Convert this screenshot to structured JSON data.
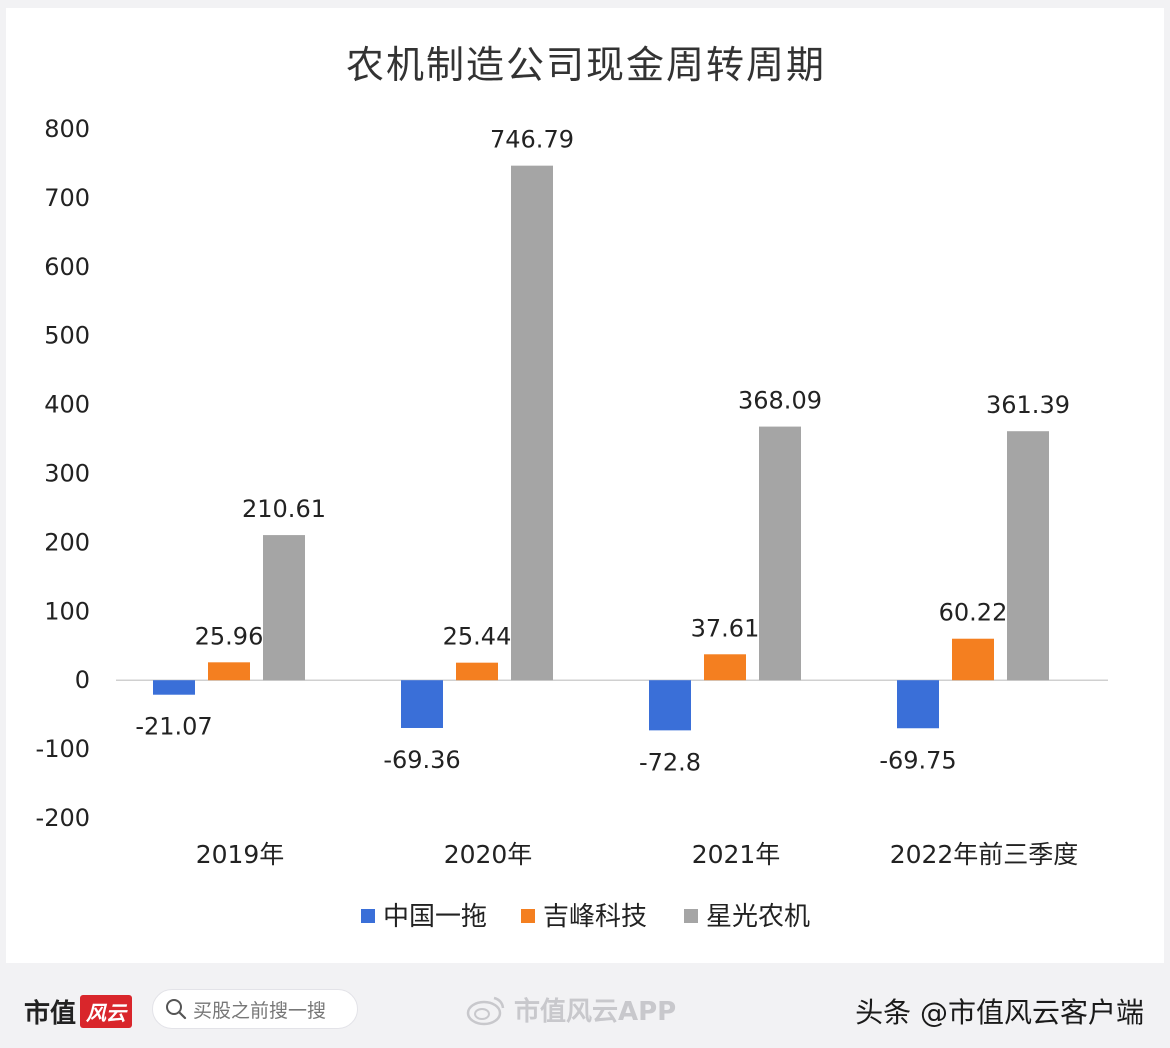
{
  "chart_data": {
    "type": "bar",
    "title": "农机制造公司现金周转周期",
    "categories": [
      "2019年",
      "2020年",
      "2021年",
      "2022年前三季度"
    ],
    "series": [
      {
        "name": "中国一拖",
        "color": "#3a6fd8",
        "values": [
          -21.07,
          -69.36,
          -72.8,
          -69.75
        ],
        "labels": [
          "-21.07",
          "-69.36",
          "-72.8",
          "-69.75"
        ]
      },
      {
        "name": "吉峰科技",
        "color": "#f47f20",
        "values": [
          25.96,
          25.44,
          37.61,
          60.22
        ],
        "labels": [
          "25.96",
          "25.44",
          "37.61",
          "60.22"
        ]
      },
      {
        "name": "星光农机",
        "color": "#a5a5a5",
        "values": [
          210.61,
          746.79,
          368.09,
          361.39
        ],
        "labels": [
          "210.61",
          "746.79",
          "368.09",
          "361.39"
        ]
      }
    ],
    "ylim": [
      -200,
      800
    ],
    "yticks": [
      800,
      700,
      600,
      500,
      400,
      300,
      200,
      100,
      0,
      -100,
      -200
    ],
    "ytick_labels": [
      "800",
      "700",
      "600",
      "500",
      "400",
      "300",
      "200",
      "100",
      "0",
      "-100",
      "-200"
    ],
    "grid": false,
    "legend": "bottom"
  },
  "footer": {
    "logo_text": "市值",
    "logo_badge": "风云",
    "search_placeholder": "买股之前搜一搜",
    "watermark_text": "市值风云APP",
    "source": "头条 @市值风云客户端"
  }
}
